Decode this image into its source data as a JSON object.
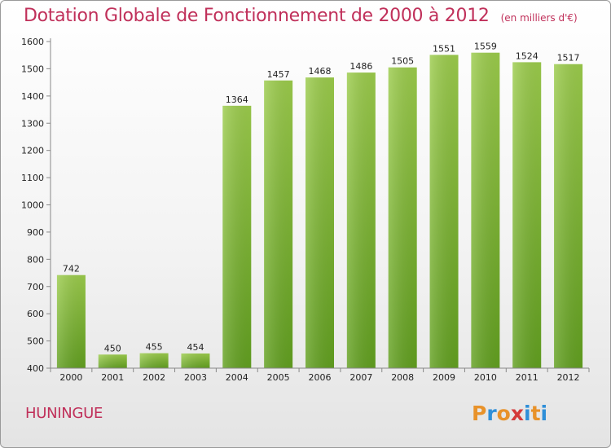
{
  "header": {
    "title": "Dotation Globale de Fonctionnement de 2000 à 2012",
    "unit": "(en milliers d'€)"
  },
  "footer": {
    "commune": "HUNINGUE",
    "logo_text": "Proxiti"
  },
  "colors": {
    "title": "#c0305a",
    "bar_top": "#9ccc4c",
    "bar_bottom": "#62a020",
    "logo_letters": [
      "#e8922a",
      "#2f8fd8",
      "#e8922a",
      "#d43a3a",
      "#2f8fd8",
      "#e8922a",
      "#2f8fd8"
    ]
  },
  "chart_data": {
    "type": "bar",
    "categories": [
      "2000",
      "2001",
      "2002",
      "2003",
      "2004",
      "2005",
      "2006",
      "2007",
      "2008",
      "2009",
      "2010",
      "2011",
      "2012"
    ],
    "values": [
      742,
      450,
      455,
      454,
      1364,
      1457,
      1468,
      1486,
      1505,
      1551,
      1559,
      1524,
      1517
    ],
    "title": "Dotation Globale de Fonctionnement de 2000 à 2012",
    "ylim": [
      400,
      1600
    ],
    "yticks": [
      400,
      500,
      600,
      700,
      800,
      900,
      1000,
      1100,
      1200,
      1300,
      1400,
      1500,
      1600
    ],
    "grid": false,
    "legend": "none"
  }
}
